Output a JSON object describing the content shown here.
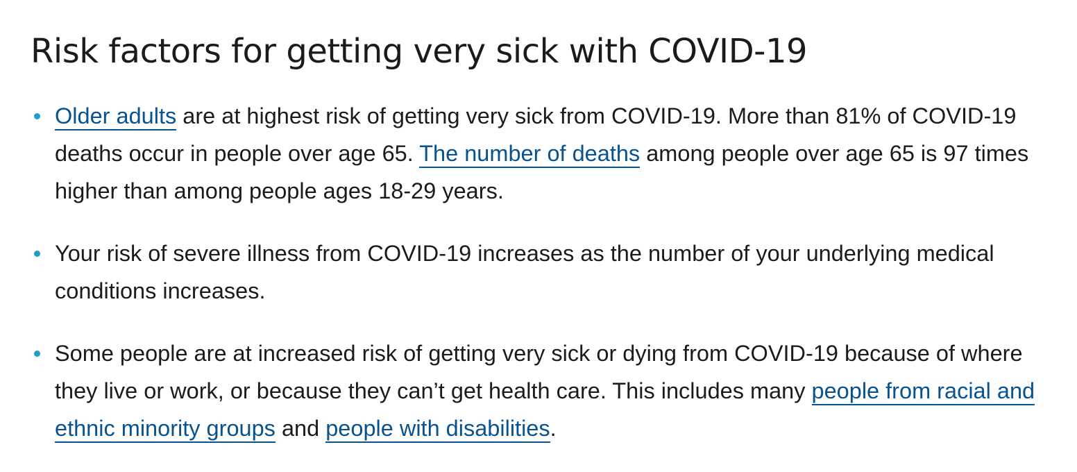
{
  "page": {
    "title": "Risk factors for getting very sick with COVID-19"
  },
  "colors": {
    "link": "#075290",
    "bullet": "#1e9fc4",
    "text": "#1b1b1b"
  },
  "items": [
    {
      "link1": "Older adults",
      "text1": " are at highest risk of getting very sick from COVID-19. More than 81% of COVID-19 deaths occur in people over age 65. ",
      "link2": "The number of deaths",
      "text2": " among people over age 65 is 97 times higher than among people ages 18-29 years."
    },
    {
      "text1": "Your risk of severe illness from COVID-19 increases as the number of your underlying medical conditions increases."
    },
    {
      "text1": "Some people are at increased risk of getting very sick or dying from COVID-19 because of where they live or work, or because they can’t get health care. This includes many ",
      "link1": "people from racial and ethnic minority groups",
      "text2": " and ",
      "link2": "people with disabilities",
      "text3": "."
    }
  ]
}
